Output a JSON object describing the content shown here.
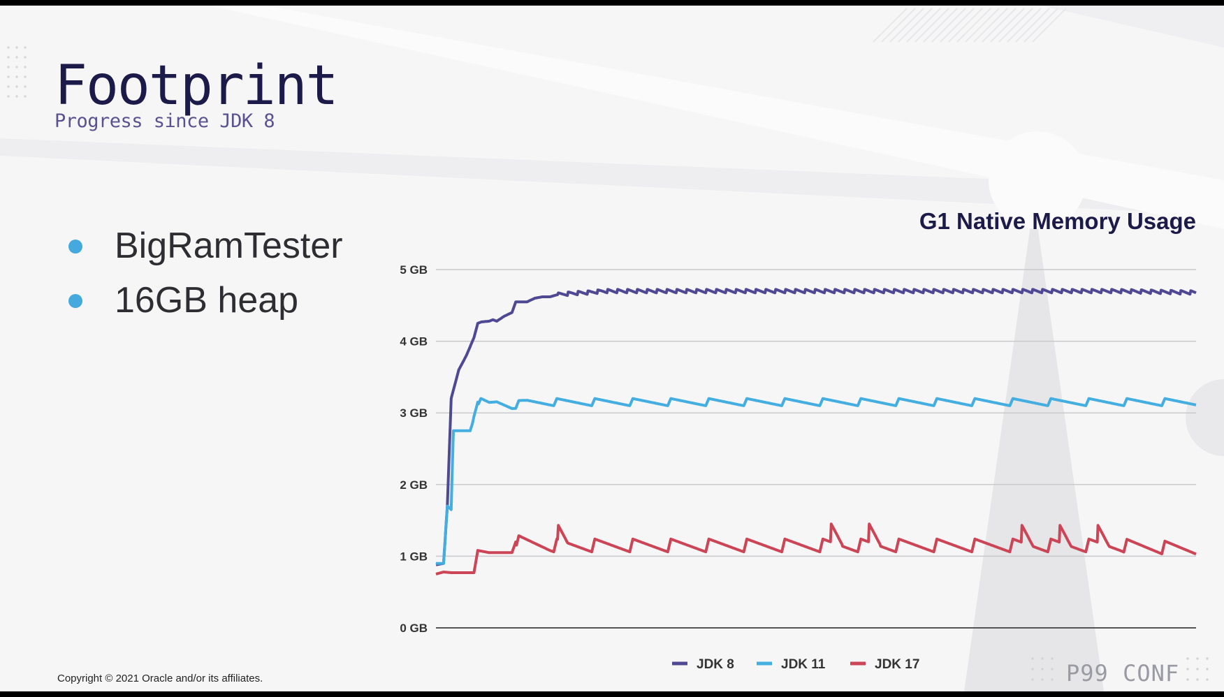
{
  "slide": {
    "title": "Footprint",
    "subtitle": "Progress since JDK 8",
    "bullets": [
      "BigRamTester",
      "16GB heap"
    ],
    "footer": "Copyright © 2021 Oracle and/or its affiliates.",
    "logo": "P99 CONF"
  },
  "colors": {
    "title": "#1c1a48",
    "bullet": "#45a9de",
    "jdk8": "#4f4993",
    "jdk11": "#44aee0",
    "jdk17": "#cc4556"
  },
  "chart_data": {
    "type": "line",
    "title": "G1 Native Memory Usage",
    "ylabel": "",
    "xlabel": "",
    "y_unit": "GB",
    "ylim": [
      0,
      5
    ],
    "y_ticks": [
      "0 GB",
      "1 GB",
      "2 GB",
      "3 GB",
      "4 GB",
      "5 GB"
    ],
    "x_ticks": [],
    "xlim": [
      0,
      100
    ],
    "grid": true,
    "legend": "bottom",
    "series": [
      {
        "name": "JDK 8",
        "color": "#4f4993",
        "points": [
          [
            0,
            0.88
          ],
          [
            1,
            0.9
          ],
          [
            1.5,
            1.7
          ],
          [
            2,
            3.2
          ],
          [
            2.5,
            3.4
          ],
          [
            3,
            3.6
          ],
          [
            4,
            3.8
          ],
          [
            5,
            4.05
          ],
          [
            5.5,
            4.25
          ],
          [
            6,
            4.27
          ],
          [
            7,
            4.28
          ],
          [
            7.5,
            4.3
          ],
          [
            8,
            4.28
          ],
          [
            9,
            4.35
          ],
          [
            10,
            4.4
          ],
          [
            10.5,
            4.55
          ],
          [
            12,
            4.55
          ],
          [
            13,
            4.6
          ],
          [
            14,
            4.62
          ],
          [
            15,
            4.62
          ],
          [
            16,
            4.65
          ],
          [
            18,
            4.67
          ],
          [
            20,
            4.68
          ],
          [
            22,
            4.7
          ],
          [
            25,
            4.7
          ],
          [
            30,
            4.7
          ],
          [
            40,
            4.7
          ],
          [
            50,
            4.7
          ],
          [
            60,
            4.7
          ],
          [
            70,
            4.7
          ],
          [
            80,
            4.7
          ],
          [
            90,
            4.7
          ],
          [
            100,
            4.68
          ]
        ],
        "sawtooth_after": 16,
        "sawtooth_period": 1.3,
        "sawtooth_amplitude": 0.05
      },
      {
        "name": "JDK 11",
        "color": "#44aee0",
        "points": [
          [
            0,
            0.9
          ],
          [
            1,
            0.9
          ],
          [
            1.5,
            1.7
          ],
          [
            2,
            1.65
          ],
          [
            2.3,
            2.75
          ],
          [
            4,
            2.75
          ],
          [
            4.5,
            2.75
          ],
          [
            4.8,
            2.85
          ],
          [
            5,
            2.95
          ],
          [
            5.5,
            3.15
          ],
          [
            6,
            3.15
          ],
          [
            7,
            3.12
          ],
          [
            8,
            3.15
          ],
          [
            10,
            3.1
          ],
          [
            12,
            3.15
          ],
          [
            15,
            3.15
          ],
          [
            20,
            3.15
          ],
          [
            30,
            3.15
          ],
          [
            40,
            3.15
          ],
          [
            50,
            3.15
          ],
          [
            60,
            3.15
          ],
          [
            70,
            3.15
          ],
          [
            80,
            3.15
          ],
          [
            90,
            3.15
          ],
          [
            100,
            3.15
          ]
        ],
        "sawtooth_after": 5.5,
        "sawtooth_period": 5,
        "sawtooth_amplitude": 0.1
      },
      {
        "name": "JDK 17",
        "color": "#cc4556",
        "points": [
          [
            0,
            0.75
          ],
          [
            1,
            0.78
          ],
          [
            2,
            0.77
          ],
          [
            3,
            0.77
          ],
          [
            4,
            0.77
          ],
          [
            5,
            0.77
          ],
          [
            5.5,
            1.08
          ],
          [
            7,
            1.05
          ],
          [
            9,
            1.05
          ],
          [
            10,
            1.05
          ],
          [
            10.5,
            1.2
          ],
          [
            15,
            1.15
          ],
          [
            20,
            1.15
          ],
          [
            30,
            1.15
          ],
          [
            40,
            1.15
          ],
          [
            50,
            1.15
          ],
          [
            60,
            1.15
          ],
          [
            70,
            1.15
          ],
          [
            80,
            1.15
          ],
          [
            90,
            1.15
          ],
          [
            100,
            1.1
          ]
        ],
        "sawtooth_after": 10.5,
        "sawtooth_period": 5,
        "sawtooth_amplitude": 0.18,
        "spikes_at": [
          16,
          52,
          57,
          77,
          82,
          87
        ],
        "spike_value": 1.45
      }
    ]
  }
}
